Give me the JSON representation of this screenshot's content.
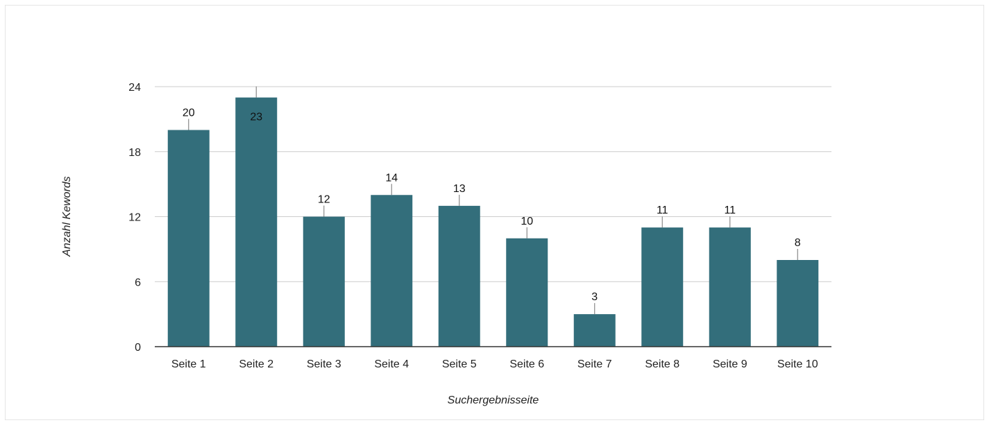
{
  "chart_data": {
    "type": "bar",
    "categories": [
      "Seite 1",
      "Seite 2",
      "Seite 3",
      "Seite 4",
      "Seite 5",
      "Seite 6",
      "Seite 7",
      "Seite 8",
      "Seite 9",
      "Seite 10"
    ],
    "values": [
      20,
      23,
      12,
      14,
      13,
      10,
      3,
      11,
      11,
      8
    ],
    "xlabel": "Suchergebnisseite",
    "ylabel": "Anzahl Kewords",
    "ylim": [
      0,
      24
    ],
    "yticks": [
      0,
      6,
      12,
      18,
      24
    ],
    "grid": true,
    "data_labels": true,
    "bar_color": "#336e7b",
    "grid_color": "#cccccc",
    "axis_color": "#333333",
    "leader_color": "#888888"
  }
}
